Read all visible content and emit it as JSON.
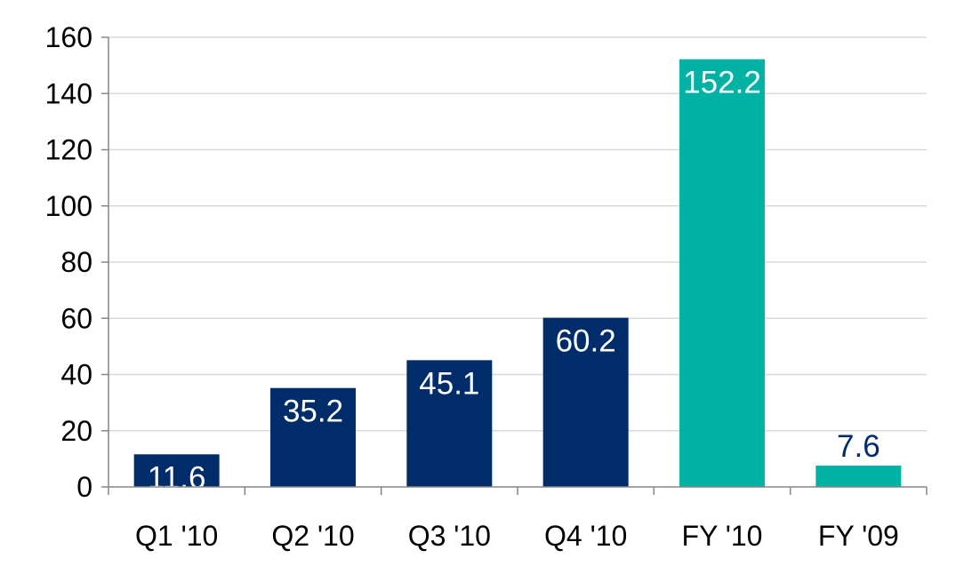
{
  "chart_data": {
    "type": "bar",
    "title": "",
    "xlabel": "",
    "ylabel": "",
    "categories": [
      "Q1 '10",
      "Q2 '10",
      "Q3 '10",
      "Q4 '10",
      "FY '10",
      "FY '09"
    ],
    "values": [
      11.6,
      35.2,
      45.1,
      60.2,
      152.2,
      7.6
    ],
    "data_labels": [
      "11.6",
      "35.2",
      "45.1",
      "60.2",
      "152.2",
      "7.6"
    ],
    "bar_colors": [
      "#002D6A",
      "#002D6A",
      "#002D6A",
      "#002D6A",
      "#00B2A3",
      "#00B2A3"
    ],
    "label_colors": [
      "#FFFFFF",
      "#FFFFFF",
      "#FFFFFF",
      "#FFFFFF",
      "#FFFFFF",
      "#002D6A"
    ],
    "label_position": [
      "inside",
      "inside",
      "inside",
      "inside",
      "inside",
      "above"
    ],
    "ylim": [
      0,
      160
    ],
    "yticks": [
      0,
      20,
      40,
      60,
      80,
      100,
      120,
      140,
      160
    ],
    "grid": true,
    "legend": "none"
  }
}
